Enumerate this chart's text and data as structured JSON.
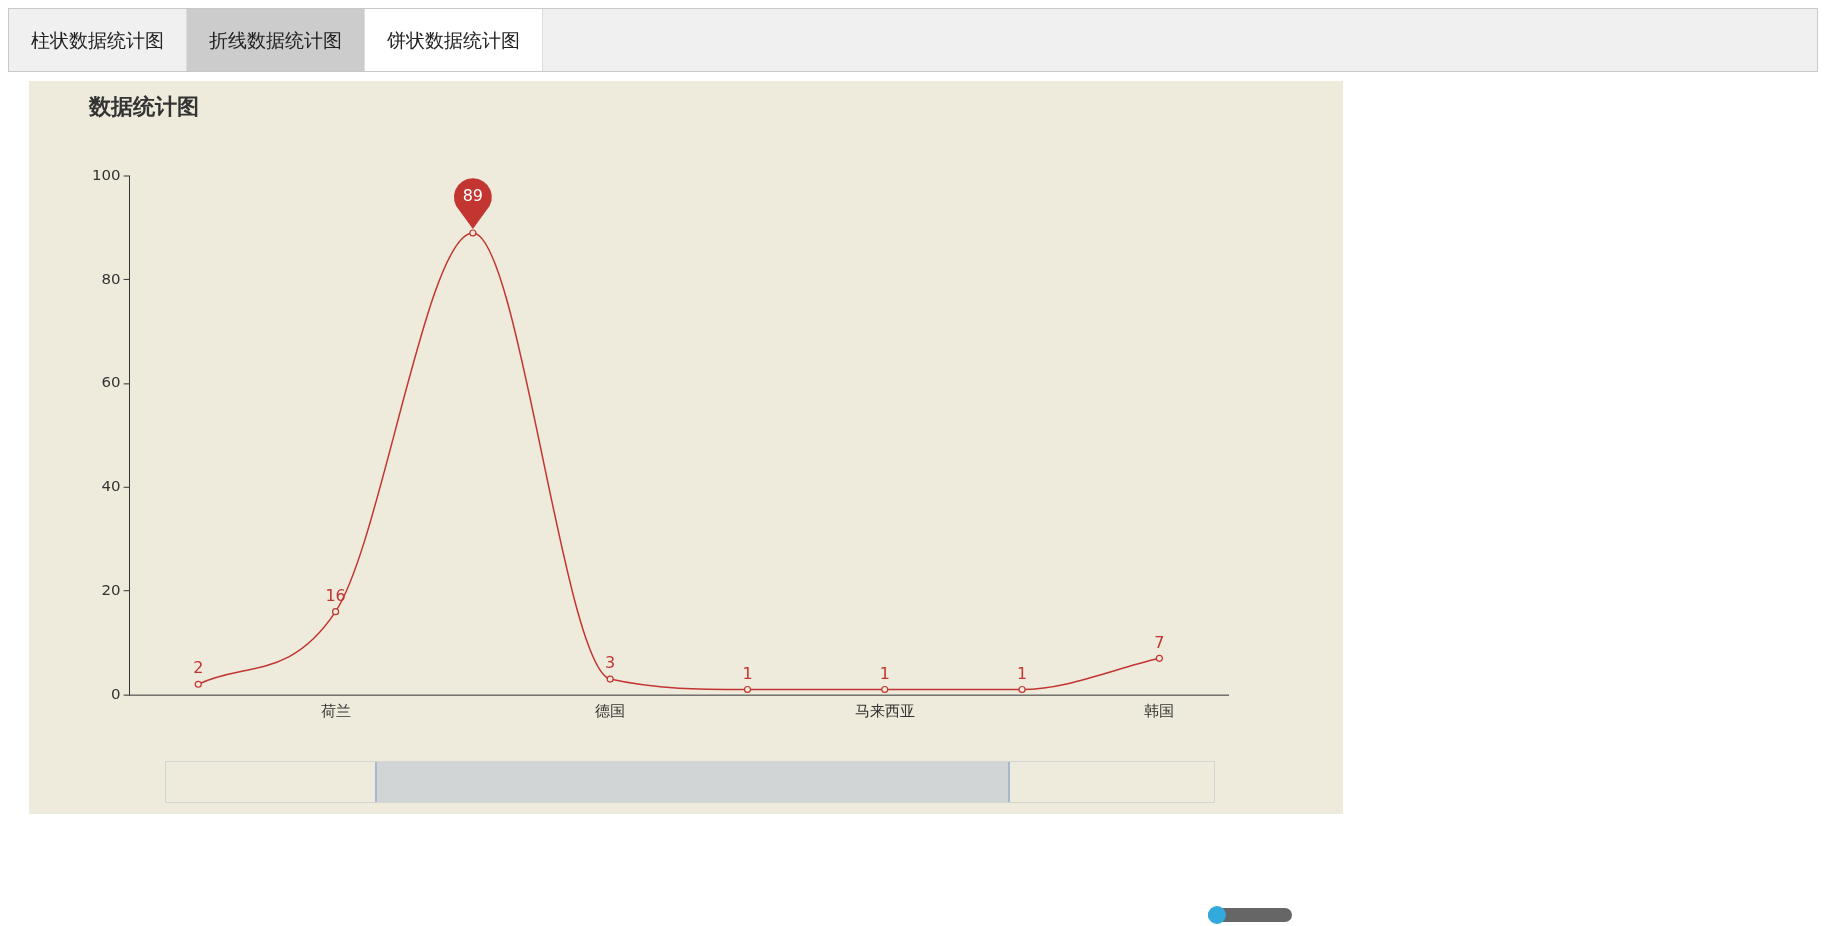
{
  "chart_data": {
    "type": "line",
    "title": "数据统计图",
    "annotations": [
      "柱状数据统计图",
      "折线数据统计图",
      "饼状数据统计图"
    ],
    "categories": [
      null,
      "荷兰",
      null,
      "德国",
      null,
      "马来西亚",
      null,
      "韩国"
    ],
    "series": [
      {
        "color": "#c23531",
        "values": [
          2,
          16,
          89,
          3,
          1,
          1,
          1,
          7
        ]
      }
    ],
    "ylim": [
      0,
      100
    ],
    "yticks": [
      0,
      20,
      40,
      60,
      80,
      100
    ],
    "grid": false,
    "legend": false,
    "marker": "circle",
    "line_style": "solid",
    "data_labels": true
  }
}
